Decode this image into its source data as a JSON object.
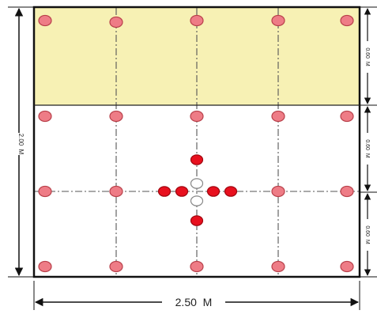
{
  "dimensions": {
    "width_label": "2.50  M",
    "height_label": "2.00  M",
    "segment_labels": [
      "0.60  M",
      "0.60  M",
      "0.60  M"
    ]
  },
  "colors": {
    "top_zone_fill": "#f7f1b4",
    "point_fill": "#ee7c86",
    "point_stroke": "#b8404a",
    "center_red": "#e8101e",
    "center_white": "#ffffff",
    "center_stroke": "#888888",
    "line": "#555555",
    "border": "#111111"
  },
  "grid": {
    "columns": 5,
    "rows": 4
  }
}
